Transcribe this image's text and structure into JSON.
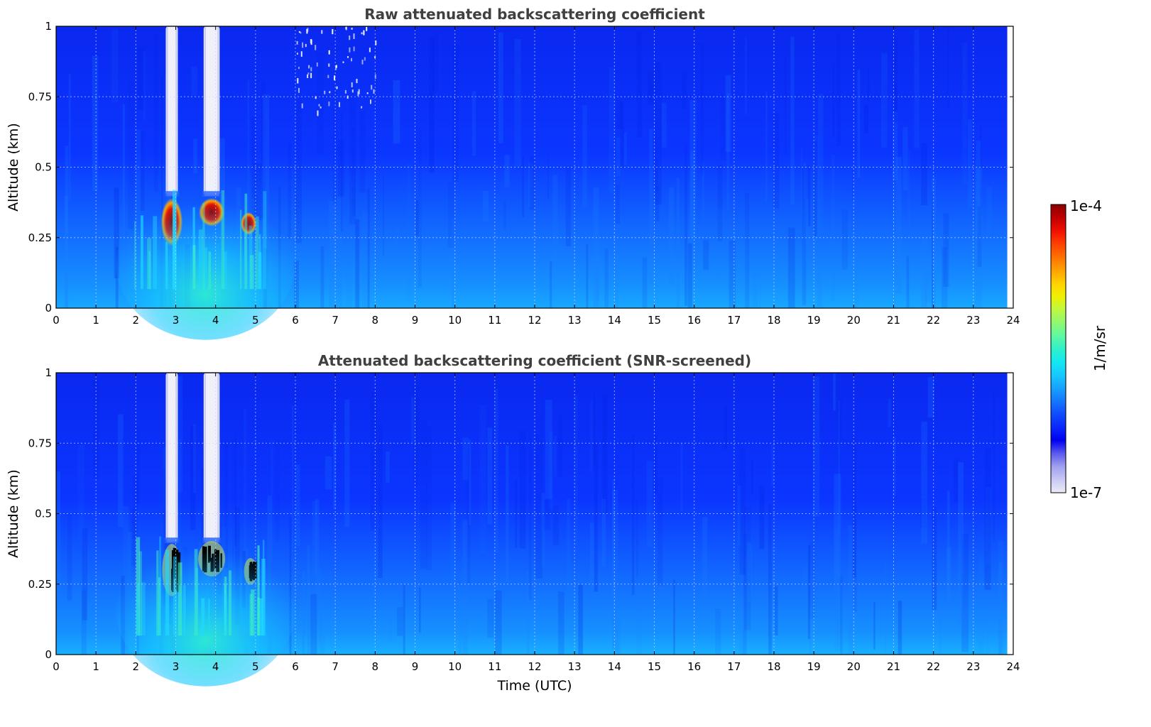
{
  "chart_data": [
    {
      "type": "heatmap",
      "title": "Raw attenuated backscattering coefficient",
      "xlabel": "",
      "ylabel": "Altitude (km)",
      "xlim": [
        0,
        24
      ],
      "ylim": [
        0,
        1
      ],
      "x_ticks": [
        "0",
        "1",
        "2",
        "3",
        "4",
        "5",
        "6",
        "7",
        "8",
        "9",
        "10",
        "11",
        "12",
        "13",
        "14",
        "15",
        "16",
        "17",
        "18",
        "19",
        "20",
        "21",
        "22",
        "23",
        "24"
      ],
      "y_ticks": [
        "0",
        "0.25",
        "0.5",
        "0.75",
        "1"
      ],
      "grid": true,
      "colormap": "jet",
      "color_scale": "log",
      "zlim": [
        1e-07,
        0.0001
      ],
      "data_end_time": 23.85,
      "features": [
        {
          "kind": "saturated_column",
          "x_start": 2.75,
          "x_end": 3.05,
          "y_start": 0.4,
          "y_end": 1.0
        },
        {
          "kind": "saturated_column",
          "x_start": 3.7,
          "x_end": 4.1,
          "y_start": 0.4,
          "y_end": 1.0
        },
        {
          "kind": "high_backscatter",
          "x_start": 2.7,
          "x_end": 3.1,
          "y_start": 0.23,
          "y_end": 0.38
        },
        {
          "kind": "high_backscatter",
          "x_start": 3.65,
          "x_end": 4.15,
          "y_start": 0.3,
          "y_end": 0.38
        },
        {
          "kind": "high_backscatter",
          "x_start": 4.7,
          "x_end": 4.95,
          "y_start": 0.27,
          "y_end": 0.33
        },
        {
          "kind": "aerosol_layer",
          "x_start": 1.5,
          "x_end": 6.0,
          "y_start": 0.0,
          "y_end": 0.45
        },
        {
          "kind": "noise_speckle",
          "x_start": 6.0,
          "x_end": 8.0,
          "y_start": 0.7,
          "y_end": 1.0
        }
      ]
    },
    {
      "type": "heatmap",
      "title": "Attenuated backscattering coefficient (SNR-screened)",
      "xlabel": "Time (UTC)",
      "ylabel": "Altitude (km)",
      "xlim": [
        0,
        24
      ],
      "ylim": [
        0,
        1
      ],
      "x_ticks": [
        "0",
        "1",
        "2",
        "3",
        "4",
        "5",
        "6",
        "7",
        "8",
        "9",
        "10",
        "11",
        "12",
        "13",
        "14",
        "15",
        "16",
        "17",
        "18",
        "19",
        "20",
        "21",
        "22",
        "23",
        "24"
      ],
      "y_ticks": [
        "0",
        "0.25",
        "0.5",
        "0.75",
        "1"
      ],
      "grid": true,
      "colormap": "jet",
      "color_scale": "log",
      "zlim": [
        1e-07,
        0.0001
      ],
      "data_end_time": 23.85,
      "features": [
        {
          "kind": "saturated_column",
          "x_start": 2.75,
          "x_end": 3.05,
          "y_start": 0.4,
          "y_end": 1.0
        },
        {
          "kind": "saturated_column",
          "x_start": 3.7,
          "x_end": 4.1,
          "y_start": 0.4,
          "y_end": 1.0
        },
        {
          "kind": "screened_out",
          "x_start": 2.75,
          "x_end": 3.05,
          "y_start": 0.22,
          "y_end": 0.38
        },
        {
          "kind": "screened_out",
          "x_start": 3.65,
          "x_end": 4.15,
          "y_start": 0.29,
          "y_end": 0.39
        },
        {
          "kind": "screened_out",
          "x_start": 4.8,
          "x_end": 4.95,
          "y_start": 0.26,
          "y_end": 0.33
        },
        {
          "kind": "aerosol_layer",
          "x_start": 1.5,
          "x_end": 6.0,
          "y_start": 0.0,
          "y_end": 0.45
        }
      ]
    }
  ],
  "colorbar": {
    "label": "1/m/sr",
    "max_label": "1e-4",
    "min_label": "1e-7",
    "colors": [
      "#ececf8",
      "#c8c8f4",
      "#a0a0f0",
      "#5a5aee",
      "#0000f0",
      "#0a28ff",
      "#0f4cff",
      "#1478ff",
      "#16a2ff",
      "#16caff",
      "#14e8f0",
      "#30f0c8",
      "#60f8a0",
      "#90f870",
      "#c0f840",
      "#f0f000",
      "#ffd000",
      "#ffa000",
      "#ff7000",
      "#ff4000",
      "#f01000",
      "#c00000",
      "#8a0000"
    ]
  }
}
